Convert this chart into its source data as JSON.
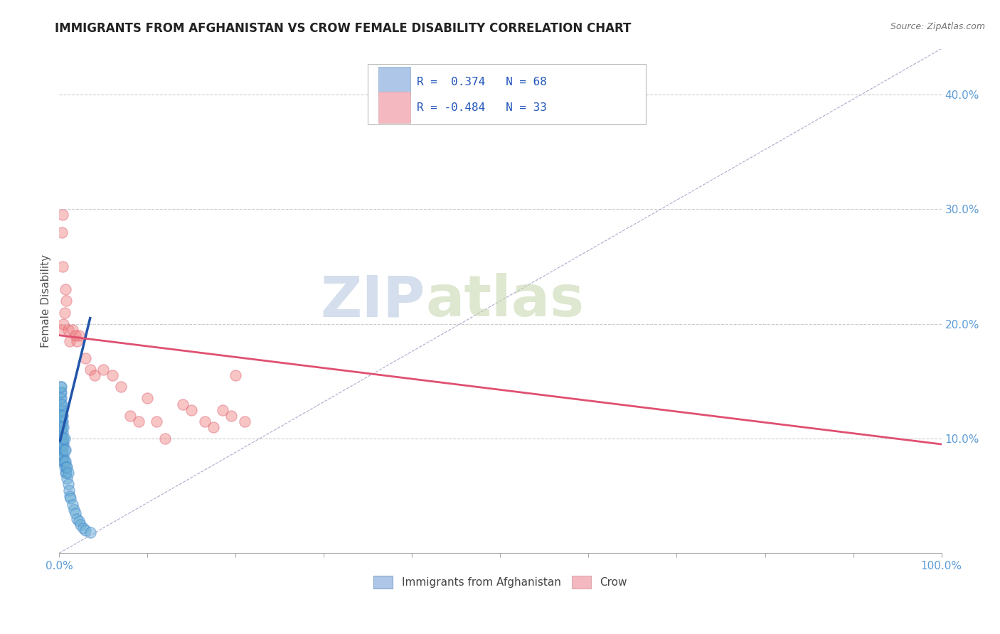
{
  "title": "IMMIGRANTS FROM AFGHANISTAN VS CROW FEMALE DISABILITY CORRELATION CHART",
  "source_text": "Source: ZipAtlas.com",
  "ylabel": "Female Disability",
  "xlim": [
    0.0,
    1.0
  ],
  "ylim": [
    0.0,
    0.44
  ],
  "y_tick_vals": [
    0.1,
    0.2,
    0.3,
    0.4
  ],
  "y_tick_labels": [
    "10.0%",
    "20.0%",
    "30.0%",
    "40.0%"
  ],
  "legend_box_color1": "#aec6e8",
  "legend_box_color2": "#f4b8c1",
  "watermark_zip": "ZIP",
  "watermark_atlas": "atlas",
  "blue_color": "#6aaed6",
  "pink_dot_color": "#f08080",
  "trend_blue_color": "#2255aa",
  "trend_pink_color": "#e05070",
  "background_color": "#ffffff",
  "grid_color": "#cccccc",
  "blue_scatter_x": [
    0.001,
    0.001,
    0.001,
    0.001,
    0.001,
    0.001,
    0.001,
    0.001,
    0.001,
    0.001,
    0.002,
    0.002,
    0.002,
    0.002,
    0.002,
    0.002,
    0.002,
    0.002,
    0.002,
    0.002,
    0.002,
    0.002,
    0.003,
    0.003,
    0.003,
    0.003,
    0.003,
    0.003,
    0.003,
    0.003,
    0.003,
    0.004,
    0.004,
    0.004,
    0.004,
    0.004,
    0.004,
    0.004,
    0.005,
    0.005,
    0.005,
    0.005,
    0.005,
    0.006,
    0.006,
    0.006,
    0.006,
    0.007,
    0.007,
    0.007,
    0.008,
    0.008,
    0.009,
    0.009,
    0.01,
    0.01,
    0.011,
    0.012,
    0.013,
    0.015,
    0.017,
    0.018,
    0.02,
    0.022,
    0.024,
    0.027,
    0.03,
    0.035
  ],
  "blue_scatter_y": [
    0.09,
    0.1,
    0.11,
    0.115,
    0.12,
    0.125,
    0.13,
    0.135,
    0.14,
    0.145,
    0.09,
    0.095,
    0.1,
    0.105,
    0.11,
    0.115,
    0.12,
    0.125,
    0.13,
    0.135,
    0.14,
    0.145,
    0.085,
    0.09,
    0.095,
    0.1,
    0.11,
    0.115,
    0.12,
    0.125,
    0.13,
    0.08,
    0.09,
    0.095,
    0.1,
    0.105,
    0.115,
    0.12,
    0.08,
    0.085,
    0.095,
    0.1,
    0.11,
    0.075,
    0.08,
    0.09,
    0.1,
    0.07,
    0.08,
    0.09,
    0.07,
    0.075,
    0.065,
    0.075,
    0.06,
    0.07,
    0.055,
    0.05,
    0.048,
    0.042,
    0.038,
    0.035,
    0.03,
    0.028,
    0.025,
    0.022,
    0.02,
    0.018
  ],
  "pink_scatter_x": [
    0.002,
    0.003,
    0.004,
    0.004,
    0.005,
    0.006,
    0.007,
    0.008,
    0.01,
    0.012,
    0.015,
    0.018,
    0.02,
    0.022,
    0.03,
    0.035,
    0.04,
    0.05,
    0.06,
    0.07,
    0.08,
    0.09,
    0.1,
    0.11,
    0.12,
    0.14,
    0.15,
    0.165,
    0.175,
    0.185,
    0.195,
    0.2,
    0.21
  ],
  "pink_scatter_y": [
    0.195,
    0.28,
    0.25,
    0.295,
    0.2,
    0.21,
    0.23,
    0.22,
    0.195,
    0.185,
    0.195,
    0.19,
    0.185,
    0.19,
    0.17,
    0.16,
    0.155,
    0.16,
    0.155,
    0.145,
    0.12,
    0.115,
    0.135,
    0.115,
    0.1,
    0.13,
    0.125,
    0.115,
    0.11,
    0.125,
    0.12,
    0.155,
    0.115
  ],
  "blue_trend_x": [
    0.001,
    0.035
  ],
  "blue_trend_y_start": 0.098,
  "blue_trend_y_end": 0.205,
  "pink_trend_x": [
    0.0,
    1.0
  ],
  "pink_trend_y_start": 0.19,
  "pink_trend_y_end": 0.095
}
